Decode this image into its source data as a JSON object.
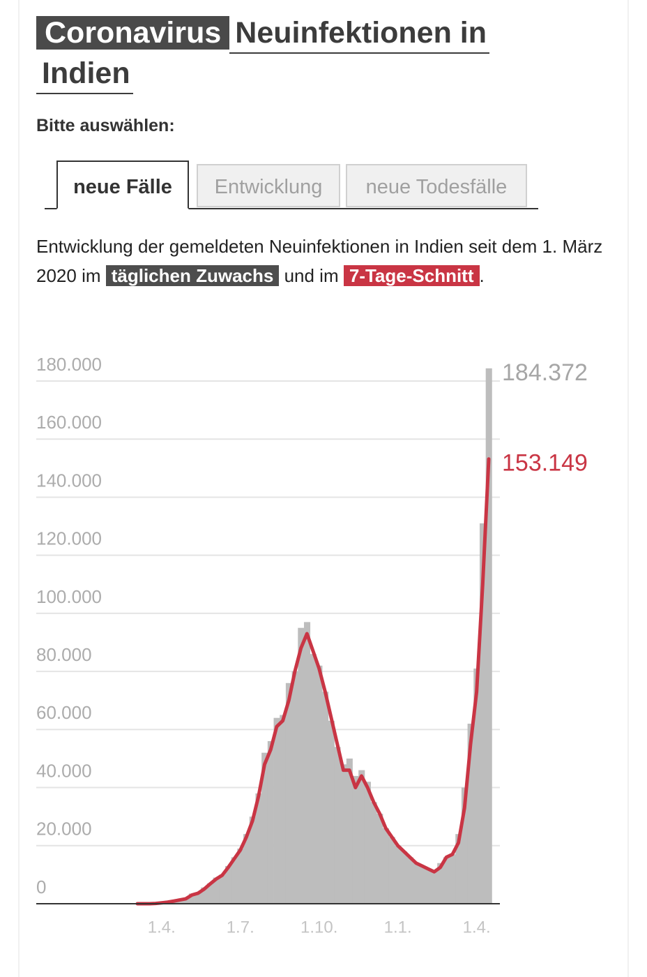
{
  "header": {
    "kicker": "Coronavirus",
    "title": "Neuinfektionen in Indien"
  },
  "prompt": "Bitte auswählen:",
  "tabs": [
    "neue Fälle",
    "Entwicklung",
    "neue Todesfälle"
  ],
  "description": {
    "intro": "Entwicklung der gemeldeten Neuinfektionen in Indien seit dem 1. März 2020 im",
    "joiner": "und im",
    "end": "."
  },
  "chart_data": {
    "type": "bar-line",
    "categories": [
      null,
      null,
      null,
      null,
      "1.4.",
      null,
      null,
      null,
      null,
      null,
      null,
      null,
      null,
      null,
      null,
      null,
      null,
      "1.7.",
      null,
      null,
      null,
      null,
      null,
      null,
      null,
      null,
      null,
      null,
      null,
      null,
      "1.10.",
      null,
      null,
      null,
      null,
      null,
      null,
      null,
      null,
      null,
      null,
      null,
      null,
      "1.1.",
      null,
      null,
      null,
      null,
      null,
      null,
      null,
      null,
      null,
      null,
      null,
      null,
      "1.4.",
      null,
      null
    ],
    "series": [
      {
        "name": "täglichen Zuwachs",
        "color": "#bdbdbd",
        "mark": "bar",
        "values": [
          0,
          10,
          20,
          100,
          400,
          600,
          1000,
          1400,
          1800,
          3500,
          3700,
          5600,
          7000,
          9000,
          10000,
          13000,
          16000,
          19000,
          24000,
          30000,
          38000,
          52000,
          56000,
          64000,
          65000,
          76000,
          80000,
          95000,
          97000,
          86000,
          82000,
          73000,
          63000,
          54000,
          48000,
          50000,
          44000,
          46000,
          42000,
          35000,
          31000,
          26000,
          23000,
          20000,
          18000,
          16000,
          14000,
          13000,
          12000,
          11000,
          14000,
          16000,
          17000,
          24000,
          40000,
          62000,
          81000,
          131000,
          184372
        ],
        "value_labels": [
          null,
          null,
          null,
          null,
          null,
          null,
          null,
          null,
          null,
          null,
          null,
          null,
          null,
          null,
          null,
          null,
          null,
          null,
          null,
          null,
          null,
          null,
          null,
          null,
          null,
          null,
          null,
          null,
          null,
          null,
          null,
          null,
          null,
          null,
          null,
          null,
          null,
          null,
          null,
          null,
          null,
          null,
          null,
          null,
          null,
          null,
          null,
          null,
          null,
          null,
          null,
          null,
          null,
          null,
          null,
          null,
          null,
          null,
          "184.372"
        ],
        "label_color": "#a6a6a6"
      },
      {
        "name": "7-Tage-Schnitt",
        "color": "#c93544",
        "mark": "line",
        "values": [
          0,
          5,
          15,
          80,
          300,
          550,
          900,
          1300,
          1700,
          3000,
          3600,
          5000,
          6800,
          8500,
          9800,
          12500,
          15500,
          18500,
          23000,
          28500,
          37000,
          48000,
          53000,
          61000,
          63000,
          70000,
          80000,
          88000,
          93000,
          87000,
          81000,
          73000,
          64000,
          55000,
          46000,
          46000,
          40000,
          44000,
          40000,
          35000,
          31000,
          26000,
          23000,
          20000,
          18000,
          16000,
          14000,
          13000,
          12000,
          11000,
          12500,
          16000,
          17000,
          21000,
          33000,
          55000,
          73000,
          110000,
          153149
        ],
        "value_labels": [
          null,
          null,
          null,
          null,
          null,
          null,
          null,
          null,
          null,
          null,
          null,
          null,
          null,
          null,
          null,
          null,
          null,
          null,
          null,
          null,
          null,
          null,
          null,
          null,
          null,
          null,
          null,
          null,
          null,
          null,
          null,
          null,
          null,
          null,
          null,
          null,
          null,
          null,
          null,
          null,
          null,
          null,
          null,
          null,
          null,
          null,
          null,
          null,
          null,
          null,
          null,
          null,
          null,
          null,
          null,
          null,
          null,
          null,
          "153.149"
        ],
        "label_color": "#c93544"
      }
    ],
    "ylim": [
      0,
      180000
    ],
    "yticks": [
      0,
      {
        "value": 20000,
        "label": "20.000"
      },
      {
        "value": 40000,
        "label": "40.000"
      },
      {
        "value": 60000,
        "label": "60.000"
      },
      {
        "value": 80000,
        "label": "80.000"
      },
      {
        "value": 100000,
        "label": "100.000"
      },
      {
        "value": 120000,
        "label": "120.000"
      },
      {
        "value": 140000,
        "label": "140.000"
      },
      {
        "value": 160000,
        "label": "160.000"
      },
      {
        "value": 180000,
        "label": "180.000"
      }
    ],
    "grid": true
  }
}
